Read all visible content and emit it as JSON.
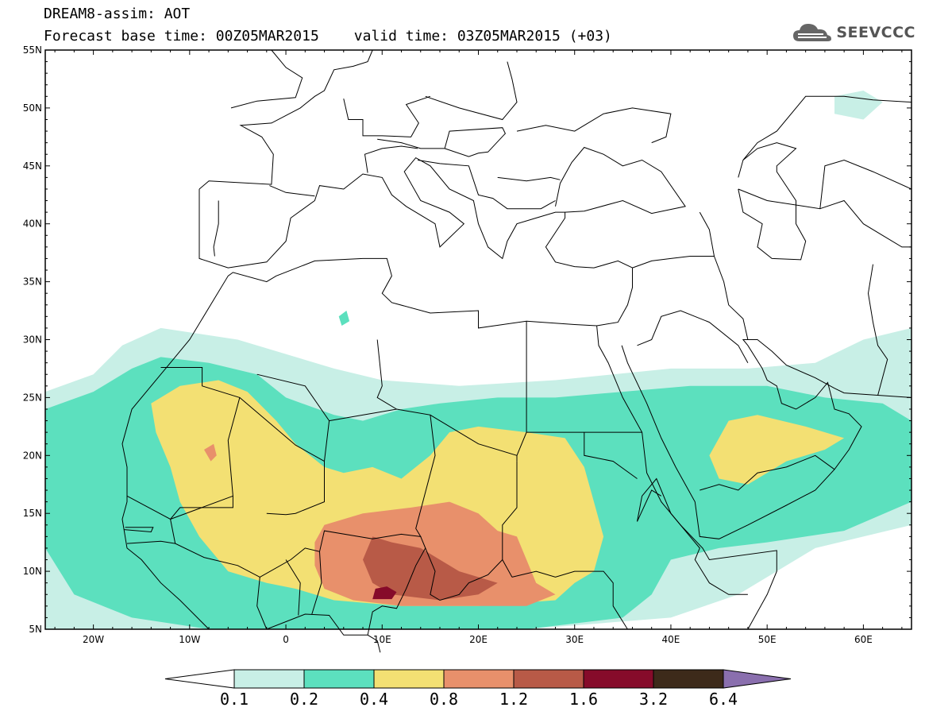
{
  "header": {
    "title": "DREAM8-assim: AOT",
    "base_time": "Forecast base time: 00Z05MAR2015",
    "valid_time": "valid time: 03Z05MAR2015 (+03)"
  },
  "logo": {
    "text": "SEEVCCC",
    "icon": "cloud-icon"
  },
  "map": {
    "lon_range": [
      -25,
      65
    ],
    "lat_range": [
      5,
      55
    ],
    "lat_ticks": [
      "5N",
      "10N",
      "15N",
      "20N",
      "25N",
      "30N",
      "35N",
      "40N",
      "45N",
      "50N",
      "55N"
    ],
    "lon_ticks": [
      "20W",
      "10W",
      "0",
      "10E",
      "20E",
      "30E",
      "40E",
      "50E",
      "60E"
    ],
    "colors": {
      "ocean": "#ffffff",
      "border": "#000000",
      "c01": "#c8efe6",
      "c02": "#5ce0be",
      "c04": "#f3e073",
      "c08": "#e8906b",
      "c12": "#b85a47",
      "c16": "#860b2a",
      "c32": "#3d2a1a",
      "c64": "#8a6fae"
    }
  },
  "colorbar": {
    "labels": [
      "0.1",
      "0.2",
      "0.4",
      "0.8",
      "1.2",
      "1.6",
      "3.2",
      "6.4"
    ],
    "colors": [
      "#c8efe6",
      "#5ce0be",
      "#f3e073",
      "#e8906b",
      "#b85a47",
      "#860b2a",
      "#3d2a1a"
    ],
    "under_color": "#ffffff",
    "over_color": "#8a6fae"
  }
}
